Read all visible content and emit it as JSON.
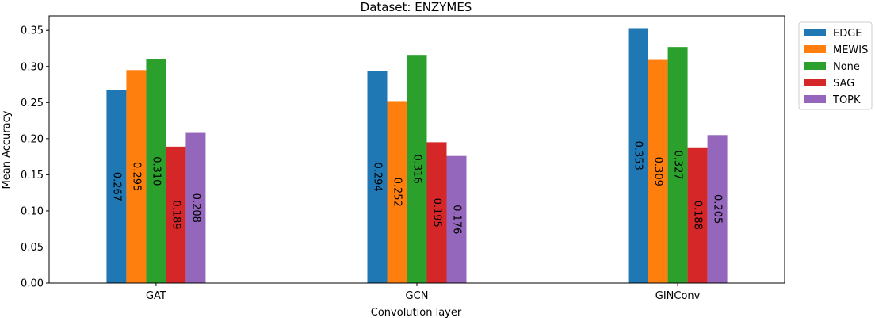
{
  "chart_data": {
    "type": "bar",
    "title": "Dataset: ENZYMES",
    "xlabel": "Convolution layer",
    "ylabel": "Mean Accuracy",
    "categories": [
      "GAT",
      "GCN",
      "GINConv"
    ],
    "ylim": [
      0,
      0.37
    ],
    "yticks": [
      0.0,
      0.05,
      0.1,
      0.15,
      0.2,
      0.25,
      0.3,
      0.35
    ],
    "ytick_labels": [
      "0.00",
      "0.05",
      "0.10",
      "0.15",
      "0.20",
      "0.25",
      "0.30",
      "0.35"
    ],
    "legend_position": "outside-top-right",
    "series": [
      {
        "name": "EDGE",
        "color": "#1f77b4",
        "values": [
          0.267,
          0.294,
          0.353
        ],
        "labels": [
          "0.267",
          "0.294",
          "0.353"
        ]
      },
      {
        "name": "MEWIS",
        "color": "#ff7f0e",
        "values": [
          0.295,
          0.252,
          0.309
        ],
        "labels": [
          "0.295",
          "0.252",
          "0.309"
        ]
      },
      {
        "name": "None",
        "color": "#2ca02c",
        "values": [
          0.31,
          0.316,
          0.327
        ],
        "labels": [
          "0.310",
          "0.316",
          "0.327"
        ]
      },
      {
        "name": "SAG",
        "color": "#d62728",
        "values": [
          0.189,
          0.195,
          0.188
        ],
        "labels": [
          "0.189",
          "0.195",
          "0.188"
        ]
      },
      {
        "name": "TOPK",
        "color": "#9467bd",
        "values": [
          0.208,
          0.176,
          0.205
        ],
        "labels": [
          "0.208",
          "0.176",
          "0.205"
        ]
      }
    ]
  }
}
